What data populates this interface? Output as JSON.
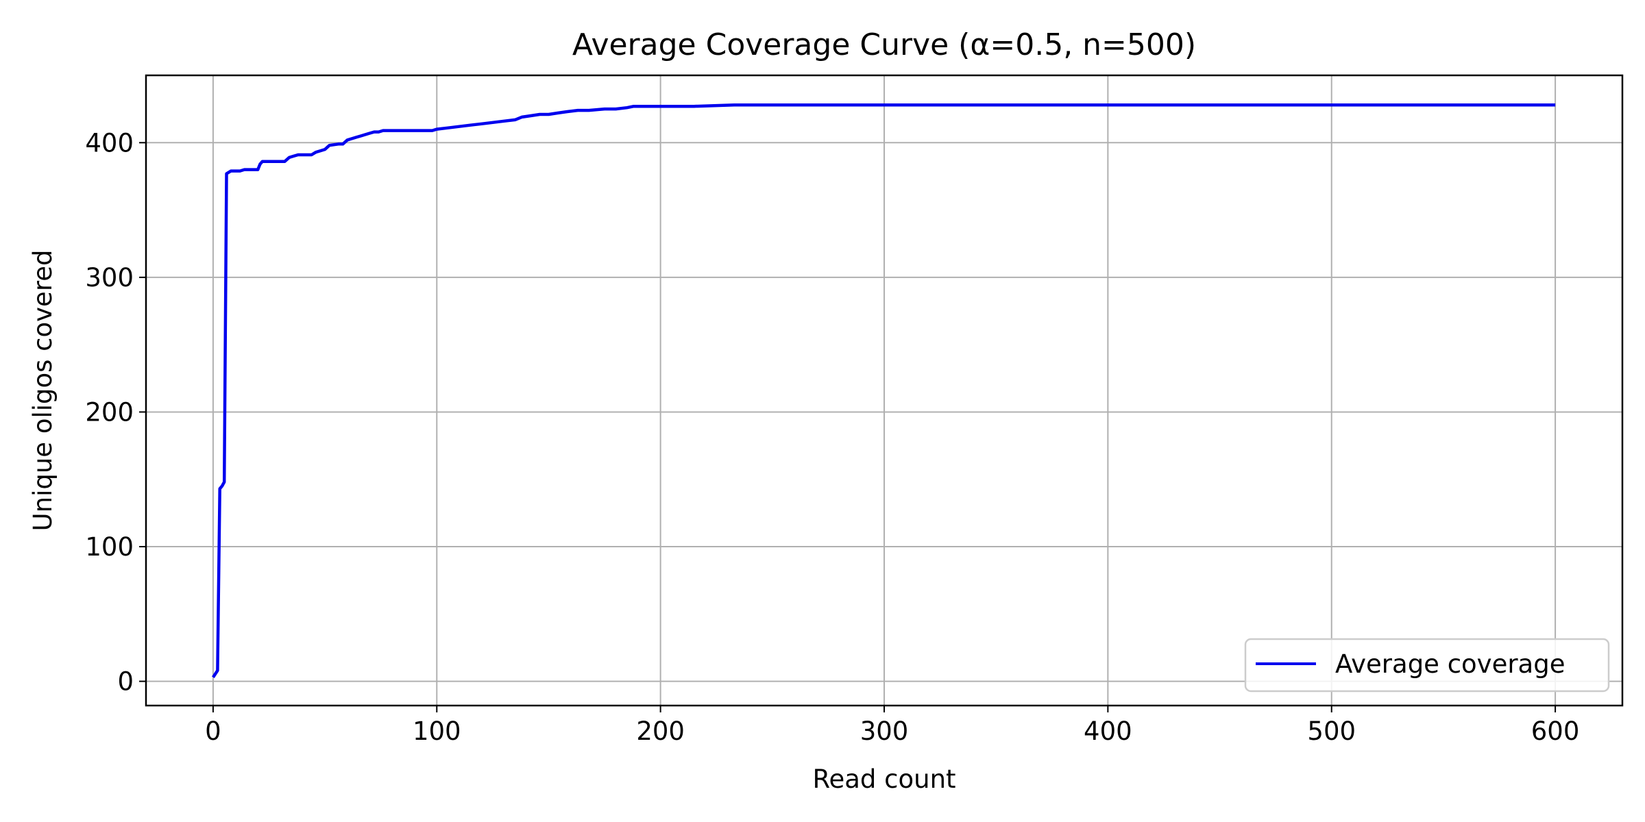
{
  "chart_data": {
    "type": "line",
    "title": "Average Coverage Curve (α=0.5, n=500)",
    "xlabel": "Read count",
    "ylabel": "Unique oligos covered",
    "xlim": [
      -30,
      630
    ],
    "ylim": [
      -18,
      450
    ],
    "xticks": [
      0,
      100,
      200,
      300,
      400,
      500,
      600
    ],
    "yticks": [
      0,
      100,
      200,
      300,
      400
    ],
    "grid": true,
    "legend": "lower-right",
    "series": [
      {
        "name": "Average coverage",
        "color": "#0000ee",
        "x": [
          0,
          2,
          3,
          4,
          5,
          6,
          8,
          10,
          12,
          14,
          16,
          18,
          20,
          21,
          22,
          24,
          26,
          28,
          32,
          34,
          36,
          38,
          40,
          42,
          44,
          46,
          48,
          50,
          52,
          56,
          58,
          60,
          62,
          64,
          66,
          68,
          70,
          72,
          74,
          76,
          78,
          80,
          85,
          90,
          95,
          98,
          100,
          105,
          110,
          115,
          120,
          125,
          130,
          135,
          138,
          142,
          146,
          150,
          154,
          158,
          163,
          168,
          175,
          180,
          185,
          188,
          200,
          215,
          233,
          250,
          300,
          350,
          400,
          450,
          500,
          550,
          600
        ],
        "y": [
          3,
          8,
          143,
          145,
          148,
          377,
          379,
          379,
          379,
          380,
          380,
          380,
          380,
          384,
          386,
          386,
          386,
          386,
          386,
          389,
          390,
          391,
          391,
          391,
          391,
          393,
          394,
          395,
          398,
          399,
          399,
          402,
          403,
          404,
          405,
          406,
          407,
          408,
          408,
          409,
          409,
          409,
          409,
          409,
          409,
          409,
          410,
          411,
          412,
          413,
          414,
          415,
          416,
          417,
          419,
          420,
          421,
          421,
          422,
          423,
          424,
          424,
          425,
          425,
          426,
          427,
          427,
          427,
          428,
          428,
          428,
          428,
          428,
          428,
          428,
          428,
          428
        ]
      }
    ]
  }
}
